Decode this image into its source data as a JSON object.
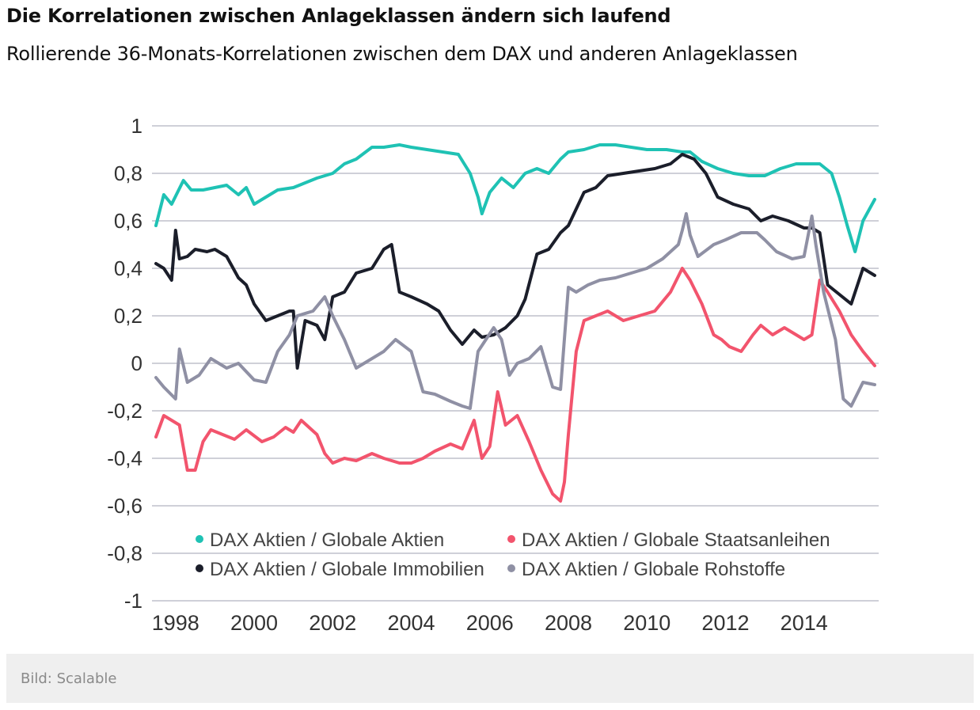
{
  "header": {
    "title": "Die Korrelationen zwischen Anlageklassen ändern sich laufend",
    "subtitle": "Rollierende 36-Monats-Korrelationen zwischen dem DAX und anderen Anlageklassen"
  },
  "footer": {
    "credit": "Bild: Scalable"
  },
  "chart_data": {
    "type": "line",
    "title": "",
    "xlabel": "",
    "ylabel": "",
    "xlim": [
      1997.4,
      2015.9
    ],
    "ylim": [
      -1,
      1
    ],
    "grid": true,
    "legend_position": "bottom-inside",
    "y_ticks": [
      "1",
      "0,8",
      "0,6",
      "0,4",
      "0,2",
      "0",
      "-0,2",
      "-0,4",
      "-0,6",
      "-0,8",
      "-1"
    ],
    "y_tick_values": [
      1,
      0.8,
      0.6,
      0.4,
      0.2,
      0,
      -0.2,
      -0.4,
      -0.6,
      -0.8,
      -1
    ],
    "x_ticks": [
      "1998",
      "2000",
      "2002",
      "2004",
      "2006",
      "2008",
      "2010",
      "2012",
      "2014"
    ],
    "x_tick_values": [
      1998,
      2000,
      2002,
      2004,
      2006,
      2008,
      2010,
      2012,
      2014
    ],
    "series": [
      {
        "name": "DAX Aktien / Globale Aktien",
        "color": "#1fc2b4",
        "x": [
          1997.5,
          1997.7,
          1997.9,
          1998.2,
          1998.4,
          1998.7,
          1999.0,
          1999.3,
          1999.6,
          1999.8,
          2000.0,
          2000.3,
          2000.6,
          2001.0,
          2001.3,
          2001.6,
          2002.0,
          2002.3,
          2002.6,
          2003.0,
          2003.3,
          2003.7,
          2004.0,
          2004.4,
          2004.8,
          2005.2,
          2005.5,
          2005.7,
          2005.8,
          2006.0,
          2006.3,
          2006.6,
          2006.9,
          2007.2,
          2007.5,
          2007.8,
          2008.0,
          2008.4,
          2008.8,
          2009.2,
          2009.6,
          2010.0,
          2010.5,
          2010.9,
          2011.1,
          2011.4,
          2011.8,
          2012.2,
          2012.6,
          2013.0,
          2013.4,
          2013.8,
          2014.2,
          2014.4,
          2014.7,
          2014.9,
          2015.1,
          2015.3,
          2015.5,
          2015.8
        ],
        "y": [
          0.58,
          0.71,
          0.67,
          0.77,
          0.73,
          0.73,
          0.74,
          0.75,
          0.71,
          0.74,
          0.67,
          0.7,
          0.73,
          0.74,
          0.76,
          0.78,
          0.8,
          0.84,
          0.86,
          0.91,
          0.91,
          0.92,
          0.91,
          0.9,
          0.89,
          0.88,
          0.8,
          0.7,
          0.63,
          0.72,
          0.78,
          0.74,
          0.8,
          0.82,
          0.8,
          0.86,
          0.89,
          0.9,
          0.92,
          0.92,
          0.91,
          0.9,
          0.9,
          0.89,
          0.89,
          0.85,
          0.82,
          0.8,
          0.79,
          0.79,
          0.82,
          0.84,
          0.84,
          0.84,
          0.8,
          0.7,
          0.58,
          0.47,
          0.6,
          0.69
        ]
      },
      {
        "name": "DAX Aktien / Globale Staatsanleihen",
        "color": "#f2546d",
        "x": [
          1997.5,
          1997.7,
          1997.9,
          1998.1,
          1998.3,
          1998.5,
          1998.7,
          1998.9,
          1999.2,
          1999.5,
          1999.8,
          2000.2,
          2000.5,
          2000.8,
          2001.0,
          2001.2,
          2001.6,
          2001.8,
          2002.0,
          2002.3,
          2002.6,
          2003.0,
          2003.3,
          2003.7,
          2004.0,
          2004.3,
          2004.6,
          2005.0,
          2005.3,
          2005.6,
          2005.8,
          2006.0,
          2006.2,
          2006.4,
          2006.7,
          2007.0,
          2007.3,
          2007.6,
          2007.8,
          2007.9,
          2008.0,
          2008.2,
          2008.4,
          2008.7,
          2009.0,
          2009.4,
          2009.8,
          2010.2,
          2010.6,
          2010.9,
          2011.1,
          2011.4,
          2011.7,
          2011.9,
          2012.1,
          2012.4,
          2012.7,
          2012.9,
          2013.2,
          2013.5,
          2013.8,
          2014.0,
          2014.2,
          2014.4,
          2014.6,
          2014.9,
          2015.2,
          2015.5,
          2015.8
        ],
        "y": [
          -0.31,
          -0.22,
          -0.24,
          -0.26,
          -0.45,
          -0.45,
          -0.33,
          -0.28,
          -0.3,
          -0.32,
          -0.28,
          -0.33,
          -0.31,
          -0.27,
          -0.29,
          -0.24,
          -0.3,
          -0.38,
          -0.42,
          -0.4,
          -0.41,
          -0.38,
          -0.4,
          -0.42,
          -0.42,
          -0.4,
          -0.37,
          -0.34,
          -0.36,
          -0.24,
          -0.4,
          -0.35,
          -0.12,
          -0.26,
          -0.22,
          -0.33,
          -0.45,
          -0.55,
          -0.58,
          -0.5,
          -0.3,
          0.05,
          0.18,
          0.2,
          0.22,
          0.18,
          0.2,
          0.22,
          0.3,
          0.4,
          0.35,
          0.25,
          0.12,
          0.1,
          0.07,
          0.05,
          0.12,
          0.16,
          0.12,
          0.15,
          0.12,
          0.1,
          0.12,
          0.35,
          0.3,
          0.22,
          0.12,
          0.05,
          -0.01
        ]
      },
      {
        "name": "DAX Aktien / Globale Immobilien",
        "color": "#1b1e2a",
        "x": [
          1997.5,
          1997.7,
          1997.9,
          1998.0,
          1998.1,
          1998.3,
          1998.5,
          1998.8,
          1999.0,
          1999.3,
          1999.6,
          1999.8,
          2000.0,
          2000.3,
          2000.6,
          2000.9,
          2001.0,
          2001.1,
          2001.3,
          2001.6,
          2001.8,
          2002.0,
          2002.3,
          2002.6,
          2003.0,
          2003.3,
          2003.5,
          2003.7,
          2004.0,
          2004.4,
          2004.7,
          2005.0,
          2005.3,
          2005.6,
          2005.8,
          2006.1,
          2006.4,
          2006.7,
          2006.9,
          2007.2,
          2007.5,
          2007.8,
          2008.0,
          2008.4,
          2008.7,
          2009.0,
          2009.4,
          2009.8,
          2010.2,
          2010.6,
          2010.9,
          2011.2,
          2011.5,
          2011.8,
          2012.2,
          2012.6,
          2012.9,
          2013.2,
          2013.6,
          2014.0,
          2014.2,
          2014.4,
          2014.6,
          2014.9,
          2015.2,
          2015.5,
          2015.8
        ],
        "y": [
          0.42,
          0.4,
          0.35,
          0.56,
          0.44,
          0.45,
          0.48,
          0.47,
          0.48,
          0.45,
          0.36,
          0.33,
          0.25,
          0.18,
          0.2,
          0.22,
          0.22,
          -0.02,
          0.18,
          0.16,
          0.1,
          0.28,
          0.3,
          0.38,
          0.4,
          0.48,
          0.5,
          0.3,
          0.28,
          0.25,
          0.22,
          0.14,
          0.08,
          0.14,
          0.11,
          0.12,
          0.15,
          0.2,
          0.27,
          0.46,
          0.48,
          0.55,
          0.58,
          0.72,
          0.74,
          0.79,
          0.8,
          0.81,
          0.82,
          0.84,
          0.88,
          0.86,
          0.8,
          0.7,
          0.67,
          0.65,
          0.6,
          0.62,
          0.6,
          0.57,
          0.57,
          0.55,
          0.33,
          0.29,
          0.25,
          0.4,
          0.37
        ]
      },
      {
        "name": "DAX Aktien / Globale Rohstoffe",
        "color": "#8f90a4",
        "x": [
          1997.5,
          1997.7,
          1998.0,
          1998.1,
          1998.3,
          1998.6,
          1998.9,
          1999.3,
          1999.6,
          2000.0,
          2000.3,
          2000.6,
          2000.9,
          2001.1,
          2001.5,
          2001.8,
          2002.0,
          2002.3,
          2002.6,
          2003.0,
          2003.3,
          2003.6,
          2004.0,
          2004.3,
          2004.6,
          2005.0,
          2005.3,
          2005.5,
          2005.7,
          2005.9,
          2006.1,
          2006.3,
          2006.5,
          2006.7,
          2007.0,
          2007.3,
          2007.6,
          2007.8,
          2008.0,
          2008.2,
          2008.5,
          2008.8,
          2009.2,
          2009.6,
          2010.0,
          2010.4,
          2010.8,
          2010.9,
          2011.0,
          2011.1,
          2011.3,
          2011.7,
          2012.0,
          2012.4,
          2012.8,
          2013.0,
          2013.3,
          2013.7,
          2014.0,
          2014.2,
          2014.3,
          2014.5,
          2014.8,
          2015.0,
          2015.2,
          2015.5,
          2015.8
        ],
        "y": [
          -0.06,
          -0.1,
          -0.15,
          0.06,
          -0.08,
          -0.05,
          0.02,
          -0.02,
          0.0,
          -0.07,
          -0.08,
          0.05,
          0.12,
          0.2,
          0.22,
          0.28,
          0.2,
          0.1,
          -0.02,
          0.02,
          0.05,
          0.1,
          0.05,
          -0.12,
          -0.13,
          -0.16,
          -0.18,
          -0.19,
          0.05,
          0.1,
          0.15,
          0.1,
          -0.05,
          0.0,
          0.02,
          0.07,
          -0.1,
          -0.11,
          0.32,
          0.3,
          0.33,
          0.35,
          0.36,
          0.38,
          0.4,
          0.44,
          0.5,
          0.56,
          0.63,
          0.54,
          0.45,
          0.5,
          0.52,
          0.55,
          0.55,
          0.52,
          0.47,
          0.44,
          0.45,
          0.62,
          0.5,
          0.3,
          0.1,
          -0.15,
          -0.18,
          -0.08,
          -0.09
        ]
      }
    ]
  }
}
